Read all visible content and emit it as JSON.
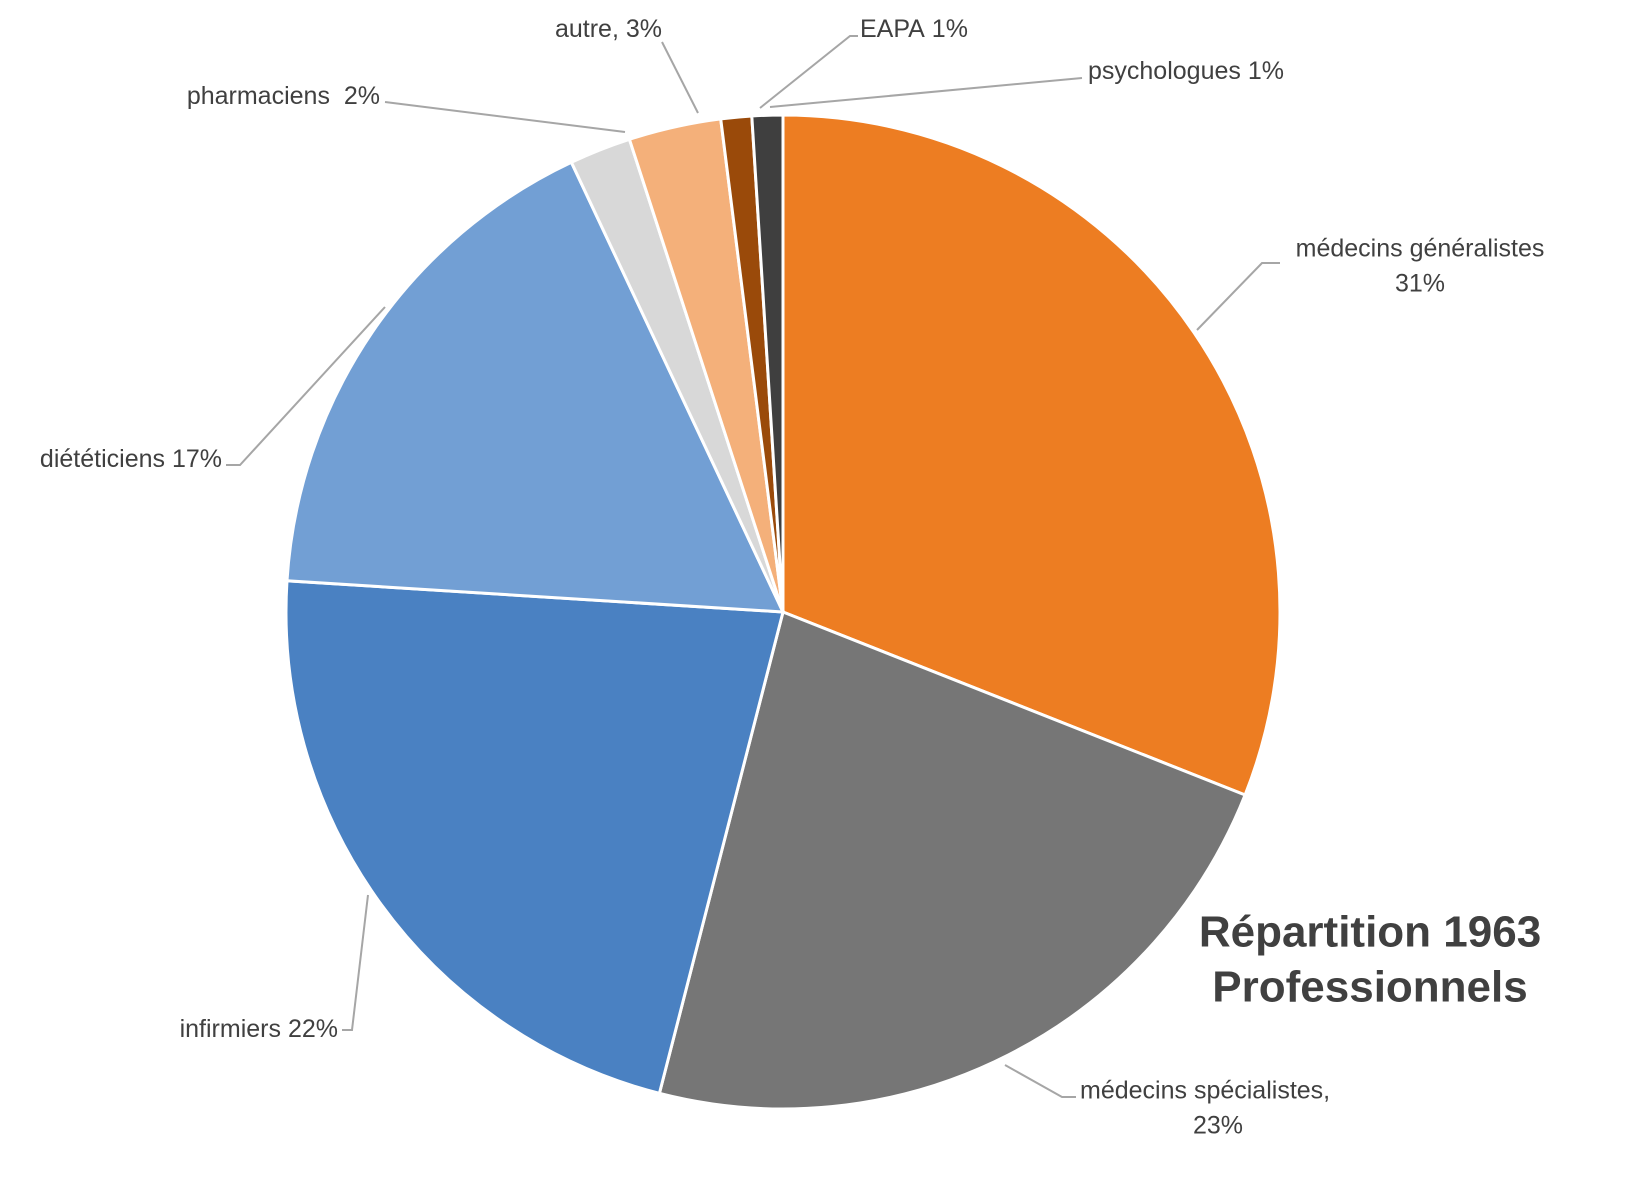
{
  "chart_data": {
    "type": "pie",
    "title": [
      "Répartition 1963",
      "Professionnels"
    ],
    "title_color": "#ED7D22",
    "categories": [
      "médecins généralistes",
      "médecins spécialistes,",
      "infirmiers",
      "diététiciens",
      "pharmaciens",
      "autre,",
      "EAPA",
      "psychologues"
    ],
    "values": [
      31,
      23,
      22,
      17,
      2,
      3,
      1,
      1
    ],
    "value_labels": [
      "31%",
      "23%",
      "22%",
      "17%",
      "2%",
      "3%",
      "1%",
      "1%"
    ],
    "colors": [
      "#ED7D22",
      "#767676",
      "#4A81C2",
      "#729FD4",
      "#D8D8D8",
      "#F4B07A",
      "#9A4A0A",
      "#3F3F3F"
    ]
  }
}
